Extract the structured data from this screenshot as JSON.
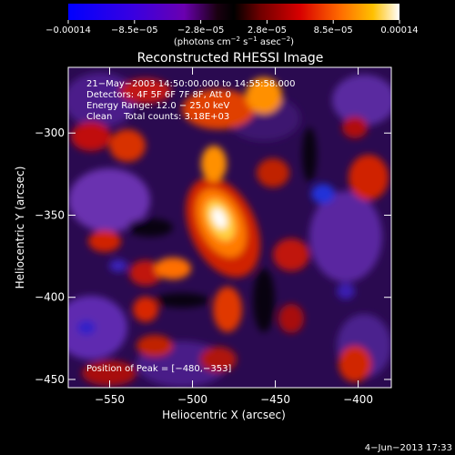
{
  "chart_data": {
    "type": "heatmap",
    "title": "Reconstructed RHESSI Image",
    "xlabel": "Heliocentric X (arcsec)",
    "ylabel": "Heliocentric Y (arcsec)",
    "xlim": [
      -575,
      -380
    ],
    "ylim": [
      -455,
      -260
    ],
    "x_ticks": [
      {
        "value": -550,
        "label": "−550"
      },
      {
        "value": -500,
        "label": "−500"
      },
      {
        "value": -450,
        "label": "−450"
      },
      {
        "value": -400,
        "label": "−400"
      }
    ],
    "y_ticks": [
      {
        "value": -300,
        "label": "−300"
      },
      {
        "value": -350,
        "label": "−350"
      },
      {
        "value": -400,
        "label": "−400"
      },
      {
        "value": -450,
        "label": "−450"
      }
    ],
    "colorbar": {
      "min": -0.00014,
      "max": 0.00014,
      "tick_labels": [
        "−0.00014",
        "−8.5e−05",
        "−2.8e−05",
        "2.8e−05",
        "8.5e−05",
        "0.00014"
      ],
      "units_prefix": "(photons cm",
      "units_sup1": "−2",
      "units_mid1": " s",
      "units_sup2": "−1",
      "units_mid2": " asec",
      "units_sup3": "−2",
      "units_suffix": ")",
      "colors": [
        "#0000ff",
        "#6a00cc",
        "#000000",
        "#c80000",
        "#ff7a00",
        "#ffffff"
      ]
    },
    "annotations": [
      "21−May−2003 14:50:00.000 to 14:55:58.000",
      "Detectors: 4F 5F 6F 7F 8F, Att 0",
      "Energy Range: 12.0 − 25.0 keV",
      "Clean    Total counts: 3.18E+03"
    ],
    "peak_label": "Position of Peak = [−480,−353]",
    "peak": {
      "x": -480,
      "y": -353
    }
  },
  "footer": {
    "timestamp": "4−Jun−2013 17:33"
  }
}
